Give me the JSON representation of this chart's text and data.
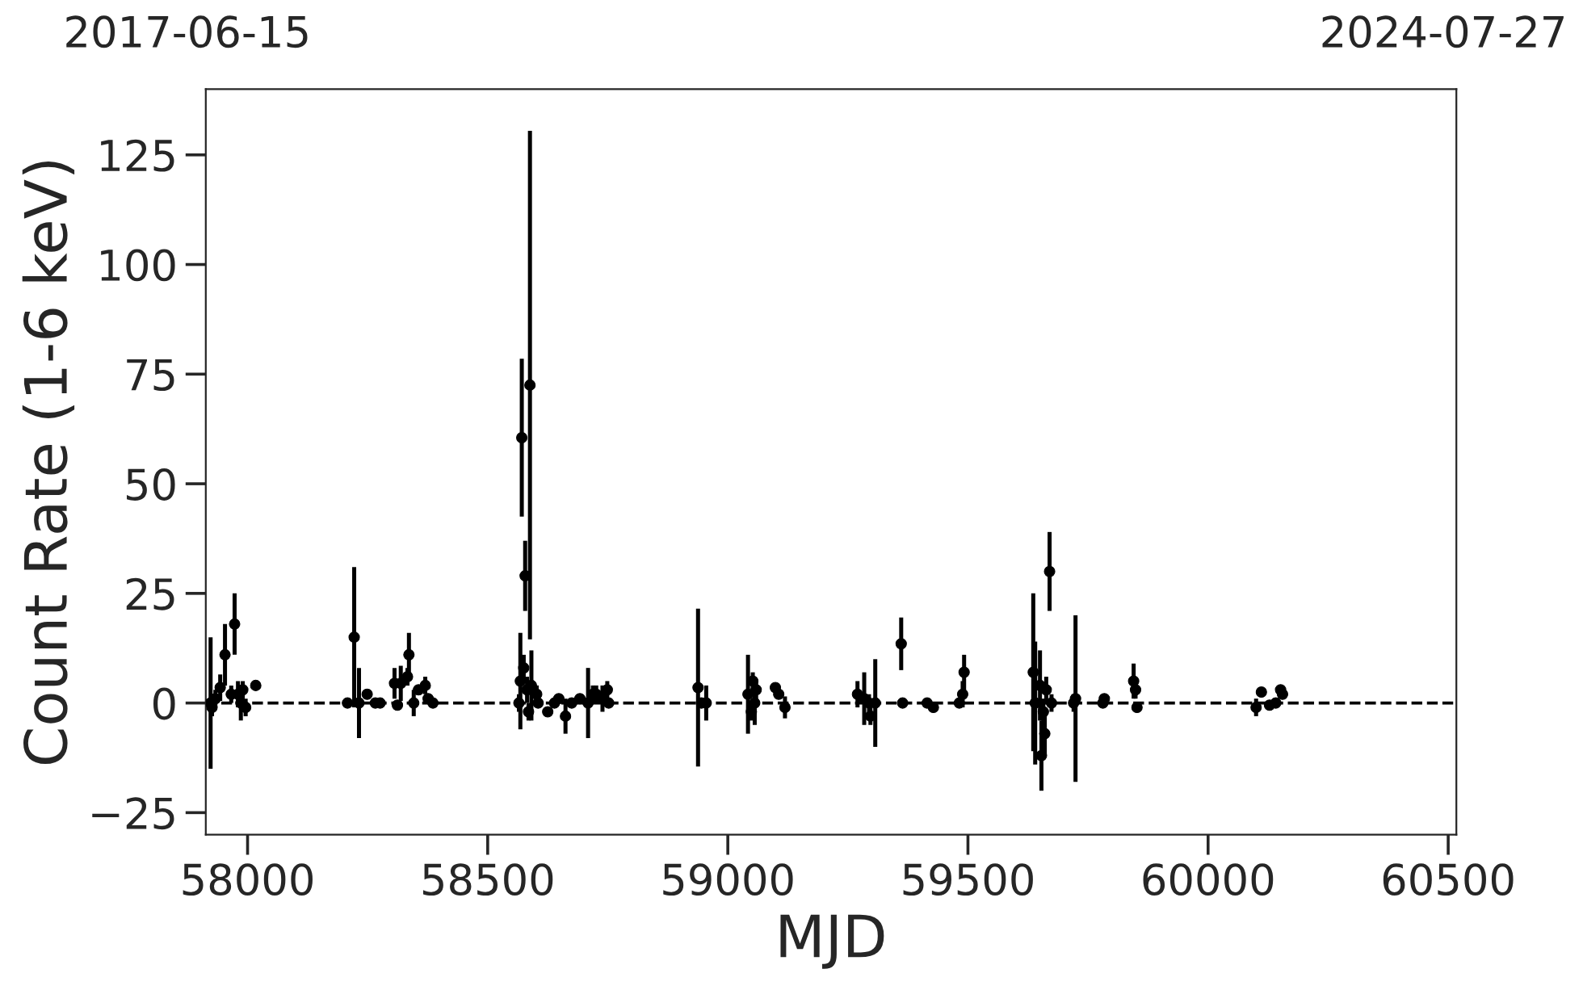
{
  "chart_data": {
    "type": "scatter",
    "xlabel": "MJD",
    "ylabel": "Count Rate (1-6 keV)",
    "annotations": [
      "2017-06-15",
      "2024-07-27"
    ],
    "xlim": [
      57913,
      60517
    ],
    "xticks": [
      58000,
      58500,
      59000,
      59500,
      60000,
      60500
    ],
    "ylim": [
      -30,
      140
    ],
    "yticks": [
      -25,
      0,
      25,
      50,
      75,
      100,
      125
    ],
    "grid": false,
    "marker": "circle",
    "ref_lines": [
      {
        "axis": "y",
        "value": 0,
        "label": null,
        "color": "#000000",
        "line_style": "dashed"
      }
    ],
    "series": [
      {
        "color": "#000000",
        "x": [
          57923,
          57926,
          57933,
          57943,
          57953,
          57966,
          57973,
          57980,
          57986,
          57990,
          57996,
          58017,
          58208,
          58222,
          58232,
          58249,
          58266,
          58276,
          58306,
          58312,
          58319,
          58336,
          58333,
          58346,
          58356,
          58370,
          58376,
          58386,
          58571,
          58578,
          58588,
          58568,
          58565,
          58575,
          58582,
          58585,
          58591,
          58602,
          58605,
          58625,
          58639,
          58648,
          58662,
          58675,
          58692,
          58709,
          58719,
          58726,
          58739,
          58749,
          58752,
          58938,
          58945,
          58955,
          59042,
          59049,
          59052,
          59056,
          59059,
          59099,
          59106,
          59119,
          59270,
          59284,
          59294,
          59297,
          59307,
          59361,
          59364,
          59415,
          59428,
          59482,
          59489,
          59492,
          59636,
          59640,
          59650,
          59653,
          59657,
          59660,
          59663,
          59670,
          59674,
          59720,
          59724,
          59781,
          59784,
          59845,
          59849,
          59852,
          60100,
          60111,
          60128,
          60141,
          60151,
          60155
        ],
        "values": [
          0,
          -1,
          1,
          3.5,
          11,
          2,
          18,
          2,
          0,
          3,
          -1,
          4,
          0,
          15,
          0,
          2,
          0,
          0,
          4.5,
          -0.5,
          4.5,
          11,
          6,
          0,
          3,
          4,
          1,
          0,
          60.5,
          29,
          72.5,
          5,
          0,
          8,
          3,
          -2,
          4,
          2,
          0,
          -2,
          0,
          1,
          -3,
          0,
          1,
          0,
          2,
          2,
          1,
          3,
          0,
          3.5,
          0,
          0,
          2,
          -2,
          5,
          0,
          3,
          3.5,
          2,
          -1,
          2,
          1,
          0,
          -3,
          0,
          13.5,
          0,
          0,
          -1,
          0,
          2,
          7,
          7,
          0,
          4,
          -12,
          -2,
          -7,
          3,
          30,
          0,
          0,
          1,
          0,
          1,
          5,
          3,
          -1,
          -1,
          2.5,
          -0.5,
          0,
          3,
          2
        ],
        "errors": [
          15,
          2,
          2,
          3,
          7,
          2,
          7,
          3,
          4,
          2,
          2,
          1,
          1,
          16,
          8,
          1,
          1,
          1,
          3.5,
          1,
          4,
          5,
          2,
          3,
          1,
          2,
          1,
          1,
          18,
          8,
          58,
          11,
          2,
          3,
          3,
          2,
          8,
          2,
          1,
          1,
          1,
          1,
          4,
          1,
          1,
          8,
          2,
          2,
          3,
          2,
          1,
          18,
          1,
          4,
          9,
          2,
          2,
          5,
          2,
          1,
          1,
          2.5,
          3,
          6,
          2,
          2,
          10,
          6,
          1,
          1,
          1,
          1,
          3,
          4,
          18,
          14,
          8,
          8,
          3,
          5,
          3,
          9,
          2,
          2,
          19,
          1,
          1,
          4,
          2,
          1,
          2,
          1,
          1,
          1,
          1,
          1
        ]
      }
    ]
  }
}
